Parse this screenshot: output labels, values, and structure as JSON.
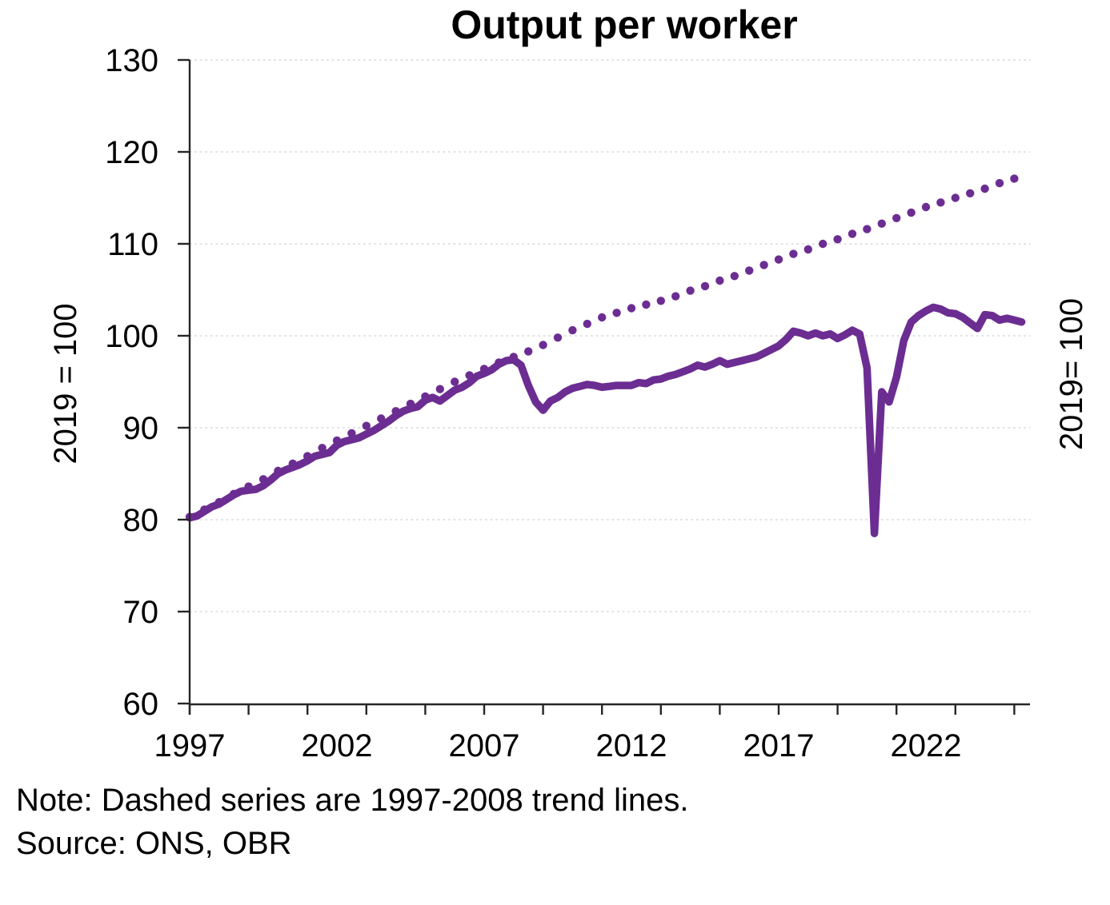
{
  "chart_data": {
    "type": "line",
    "title": "Output per worker",
    "y_axis_label_left": "2019 = 100",
    "y_axis_label_right": "2019= 100",
    "note": "Note: Dashed series are 1997-2008 trend lines.",
    "source": "Source: ONS, OBR",
    "ylim": [
      60,
      130
    ],
    "xlim": [
      1997,
      2025.5
    ],
    "y_ticks": [
      60,
      70,
      80,
      90,
      100,
      110,
      120,
      130
    ],
    "x_tick_years": [
      1997,
      1999,
      2001,
      2003,
      2005,
      2007,
      2009,
      2011,
      2013,
      2015,
      2017,
      2019,
      2021,
      2023,
      2025
    ],
    "x_label_years": [
      1997,
      2002,
      2007,
      2012,
      2017,
      2022
    ],
    "grid": "horizontal-dotted",
    "legend": "none",
    "colors": {
      "series": "#6c2d92",
      "grid": "#d9d9d9",
      "axis": "#262626",
      "text": "#000000"
    },
    "series": [
      {
        "name": "Output per worker (quarterly, actual)",
        "style": "solid",
        "x_start": 1997.0,
        "x_step": 0.25,
        "values": [
          80.2,
          80.4,
          80.9,
          81.4,
          81.7,
          82.2,
          82.7,
          83.1,
          83.2,
          83.3,
          83.7,
          84.3,
          85.0,
          85.4,
          85.7,
          86.0,
          86.4,
          86.9,
          87.1,
          87.3,
          88.1,
          88.5,
          88.7,
          88.9,
          89.3,
          89.7,
          90.2,
          90.7,
          91.3,
          91.8,
          92.1,
          92.3,
          93.0,
          93.3,
          92.9,
          93.5,
          94.1,
          94.4,
          94.9,
          95.6,
          95.9,
          96.3,
          96.9,
          97.3,
          97.4,
          96.8,
          94.6,
          92.8,
          91.9,
          92.9,
          93.3,
          93.9,
          94.3,
          94.5,
          94.7,
          94.6,
          94.4,
          94.5,
          94.6,
          94.6,
          94.6,
          94.9,
          94.8,
          95.2,
          95.3,
          95.6,
          95.8,
          96.1,
          96.4,
          96.8,
          96.6,
          96.9,
          97.3,
          96.9,
          97.1,
          97.3,
          97.5,
          97.7,
          98.1,
          98.5,
          98.9,
          99.6,
          100.5,
          100.3,
          100.0,
          100.3,
          100.0,
          100.2,
          99.7,
          100.1,
          100.6,
          100.2,
          96.5,
          78.5,
          93.9,
          92.8,
          95.5,
          99.5,
          101.5,
          102.2,
          102.7,
          103.1,
          102.9,
          102.5,
          102.4,
          102.0,
          101.4,
          100.8,
          102.3,
          102.2,
          101.7,
          101.9,
          101.7,
          101.5
        ]
      },
      {
        "name": "1997-2008 trend line (extrapolated)",
        "style": "dotted",
        "x_start": 1997.0,
        "x_step": 0.5,
        "values": [
          80.3,
          81.1,
          81.9,
          82.8,
          83.6,
          84.4,
          85.3,
          86.1,
          86.9,
          87.8,
          88.6,
          89.4,
          90.2,
          91.0,
          91.8,
          92.6,
          93.4,
          94.2,
          95.0,
          95.7,
          96.4,
          97.1,
          97.7,
          98.3,
          99.0,
          99.8,
          100.6,
          101.3,
          102.0,
          102.5,
          103.0,
          103.4,
          103.8,
          104.3,
          104.9,
          105.4,
          106.0,
          106.5,
          107.1,
          107.7,
          108.3,
          108.9,
          109.4,
          110.0,
          110.5,
          111.1,
          111.6,
          112.2,
          112.8,
          113.4,
          114.0,
          114.5,
          115.0,
          115.5,
          116.0,
          116.6,
          117.1
        ]
      }
    ]
  }
}
